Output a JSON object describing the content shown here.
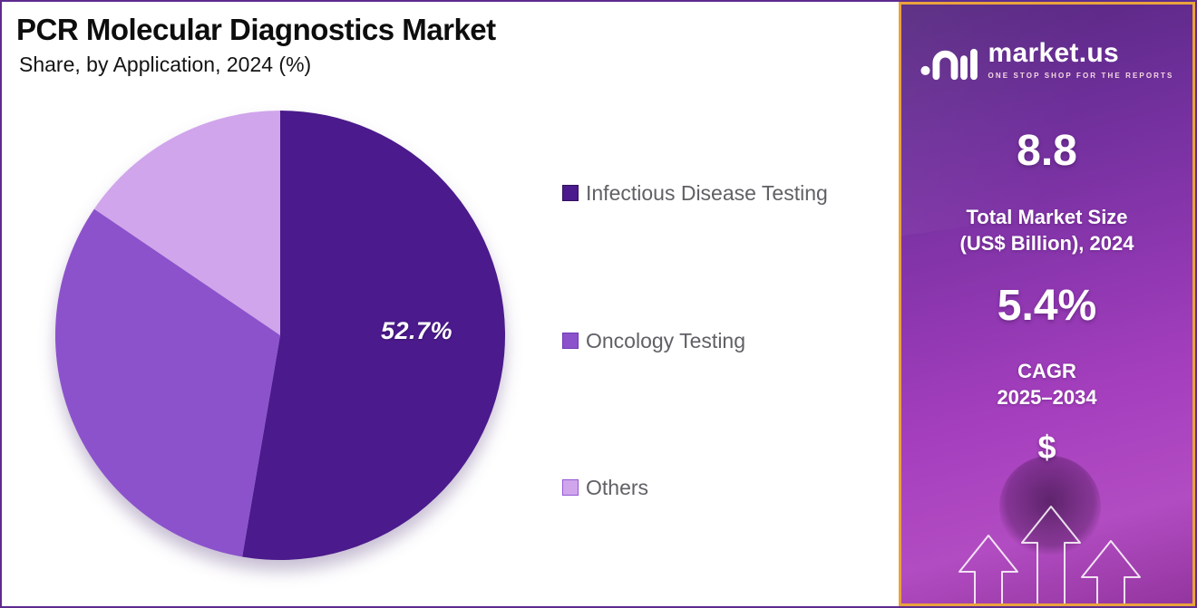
{
  "header": {
    "title": "PCR Molecular Diagnostics Market",
    "subtitle": "Share, by Application, 2024 (%)"
  },
  "chart_data": {
    "type": "pie",
    "title": "PCR Molecular Diagnostics Market — Share, by Application, 2024 (%)",
    "categories": [
      "Infectious Disease Testing",
      "Oncology Testing",
      "Others"
    ],
    "values": [
      52.7,
      31.8,
      15.5
    ],
    "colors": [
      "#4B1A8C",
      "#8C52CC",
      "#D0A5EB"
    ],
    "swatch_border_colors": [
      "#32105f",
      "#7038b8",
      "#9458d8"
    ],
    "data_label": "52.7%",
    "start_angle": "top",
    "direction": "clockwise",
    "legend_position": "right"
  },
  "sidebar": {
    "brand": {
      "name": "market.us",
      "tagline": "ONE STOP SHOP FOR THE REPORTS"
    },
    "stat_market_size": {
      "value": "8.8",
      "label_line1": "Total Market Size",
      "label_line2": "(US$ Billion), 2024"
    },
    "stat_cagr": {
      "value": "5.4%",
      "label_line1": "CAGR",
      "label_line2": "2025–2034"
    },
    "dollar_symbol": "$",
    "accent_border_color": "#E9A23C"
  }
}
